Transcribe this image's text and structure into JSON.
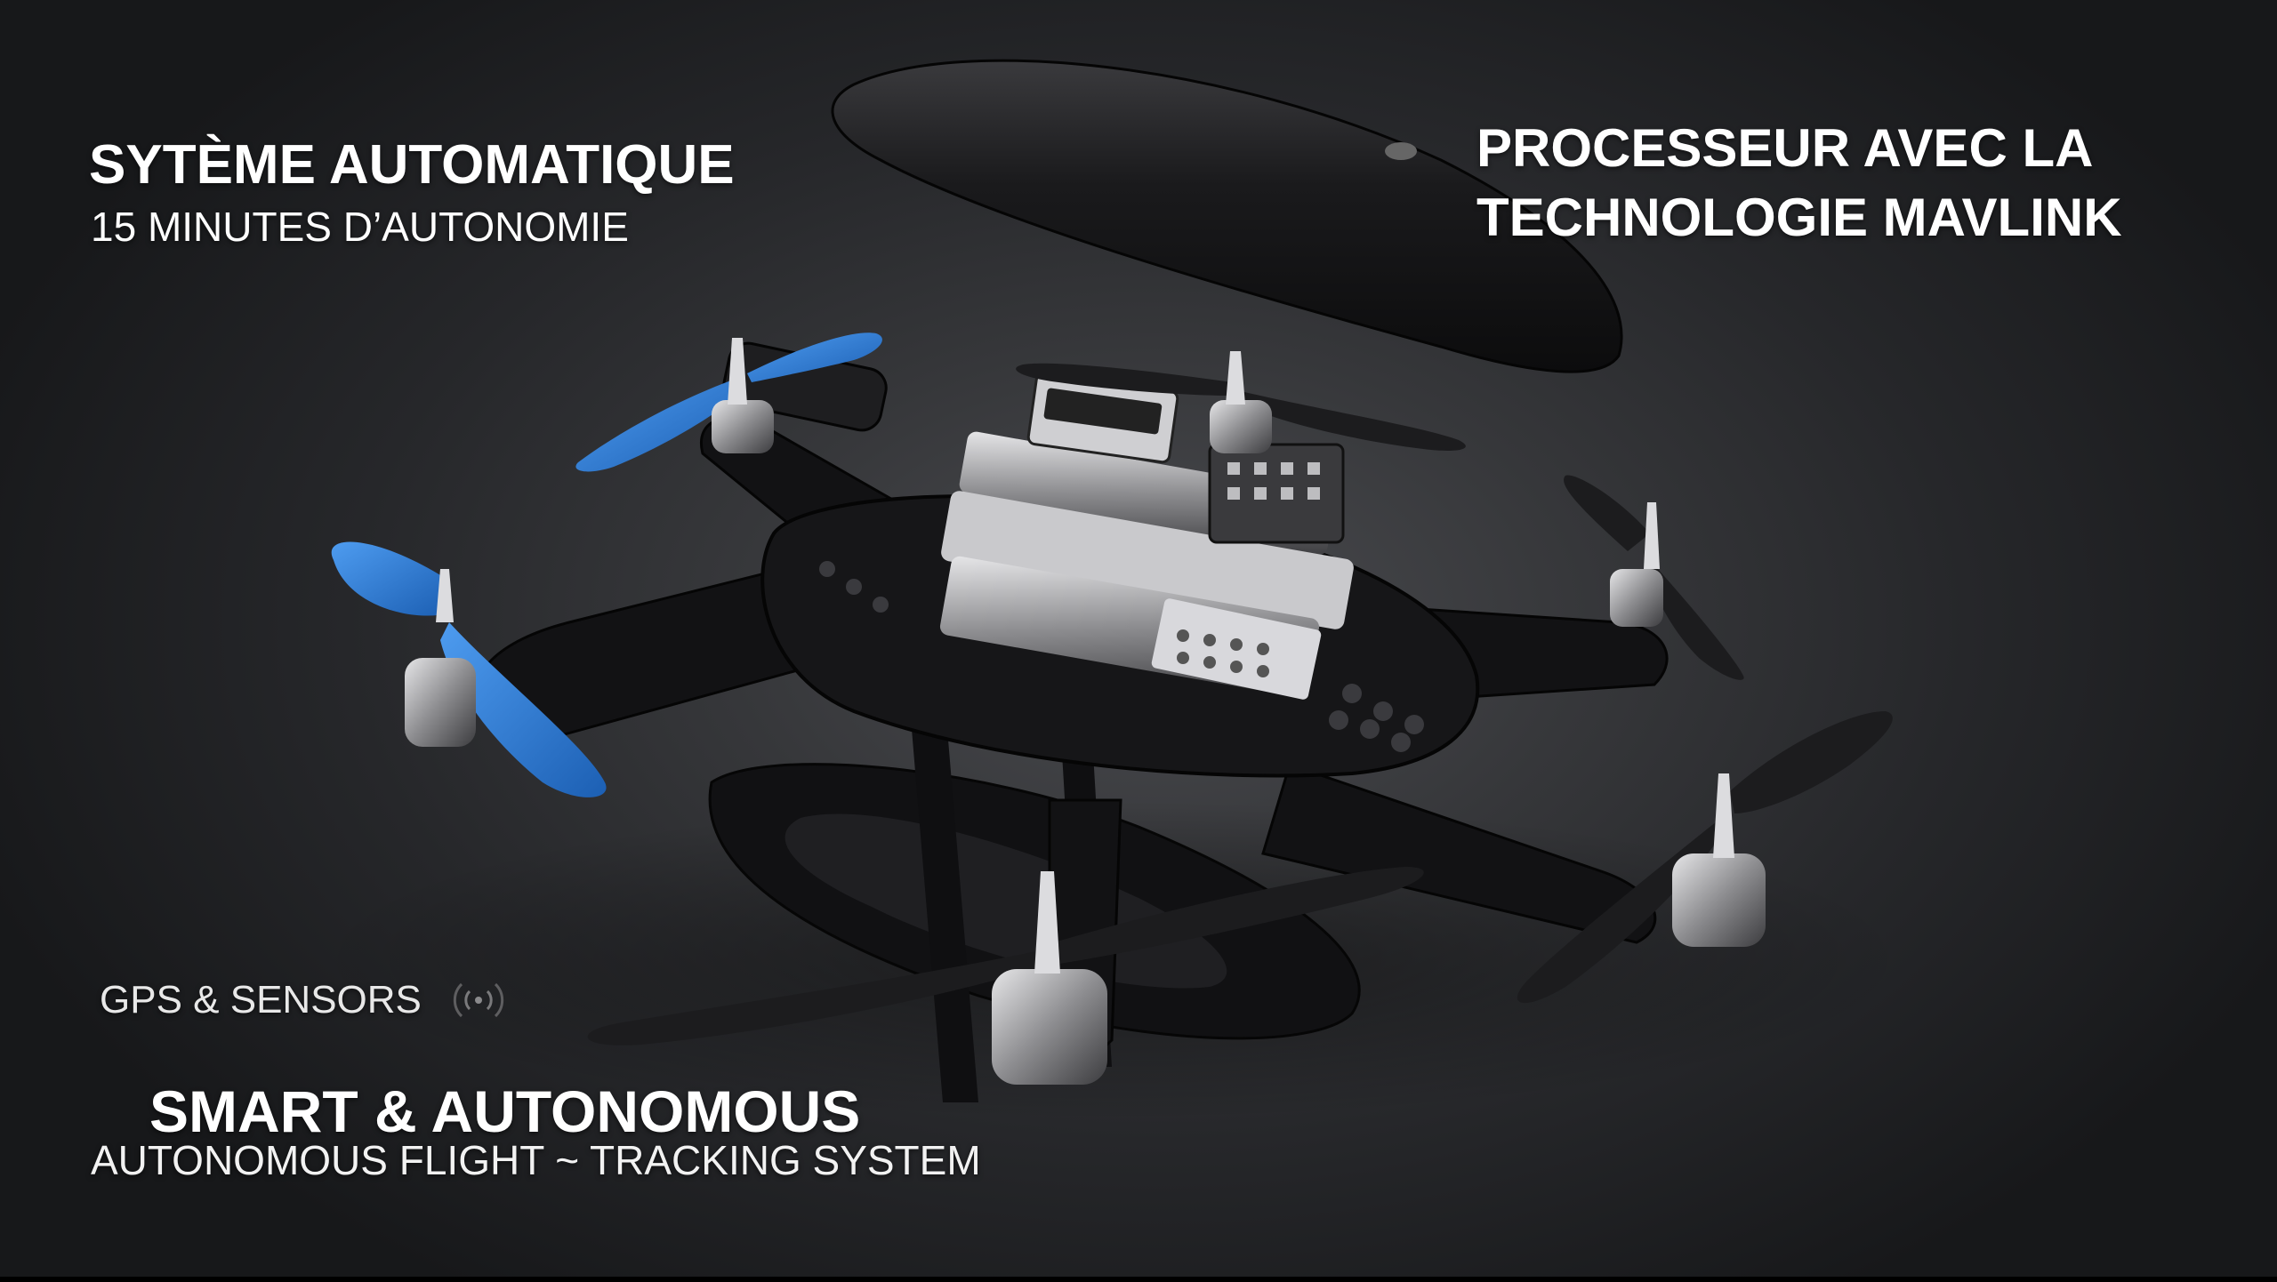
{
  "captions": {
    "top_left_title": "SYTÈME AUTOMATIQUE",
    "top_left_subtitle": "15 MINUTES D’AUTONOMIE",
    "top_right_line1": "PROCESSEUR AVEC LA",
    "top_right_line2": "TECHNOLOGIE MAVLINK",
    "gps_label": "GPS & SENSORS",
    "bottom_title": "SMART & AUTONOMOUS",
    "bottom_subtitle": "AUTONOMOUS FLIGHT ~ TRACKING SYSTEM"
  },
  "icons": {
    "gps": "signal-waves-icon"
  },
  "colors": {
    "background": "#2e2f32",
    "frame": "#141416",
    "propeller_blue": "#2f7fd6",
    "propeller_black": "#1c1c1e",
    "motor_metal": "#a9a9ab",
    "text": "#ffffff"
  }
}
